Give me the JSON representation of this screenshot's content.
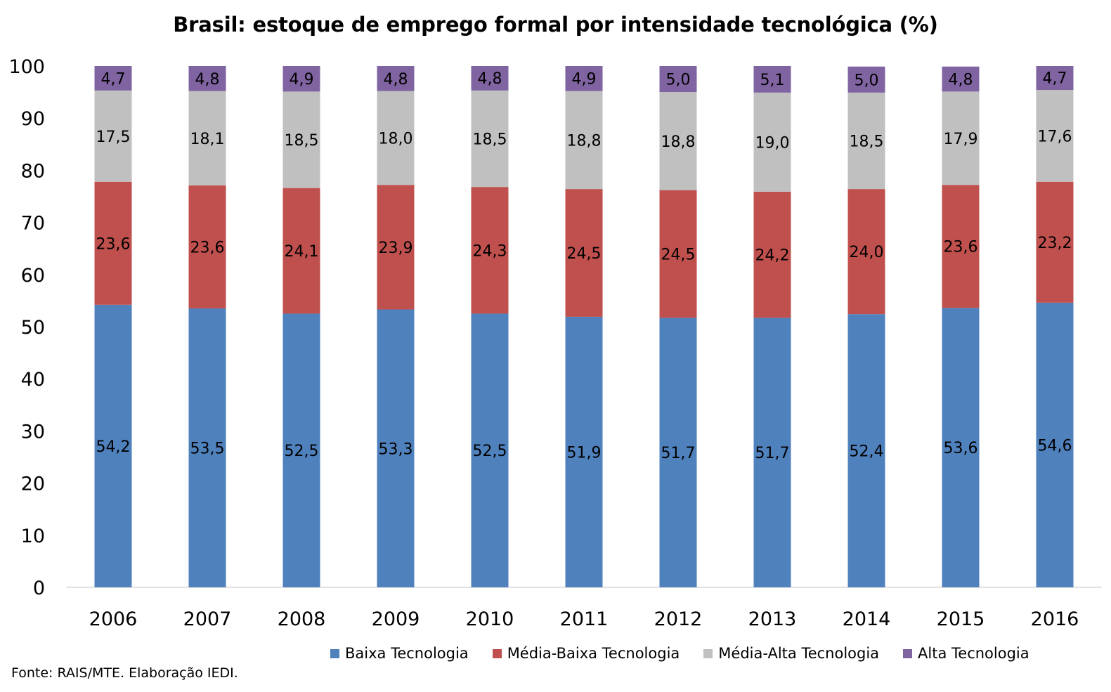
{
  "chart_data": {
    "type": "bar",
    "stacked": true,
    "title": "Brasil: estoque de emprego formal por intensidade tecnológica (%)",
    "categories": [
      "2006",
      "2007",
      "2008",
      "2009",
      "2010",
      "2011",
      "2012",
      "2013",
      "2014",
      "2015",
      "2016"
    ],
    "series": [
      {
        "name": "Baixa Tecnologia",
        "color": "#4F81BD",
        "values": [
          54.2,
          53.5,
          52.5,
          53.3,
          52.5,
          51.9,
          51.7,
          51.7,
          52.4,
          53.6,
          54.6
        ],
        "labels": [
          "54,2",
          "53,5",
          "52,5",
          "53,3",
          "52,5",
          "51,9",
          "51,7",
          "51,7",
          "52,4",
          "53,6",
          "54,6"
        ]
      },
      {
        "name": "Média-Baixa Tecnologia",
        "color": "#C0504D",
        "values": [
          23.6,
          23.6,
          24.1,
          23.9,
          24.3,
          24.5,
          24.5,
          24.2,
          24.0,
          23.6,
          23.2
        ],
        "labels": [
          "23,6",
          "23,6",
          "24,1",
          "23,9",
          "24,3",
          "24,5",
          "24,5",
          "24,2",
          "24,0",
          "23,6",
          "23,2"
        ]
      },
      {
        "name": "Média-Alta Tecnologia",
        "color": "#C0C0C0",
        "values": [
          17.5,
          18.1,
          18.5,
          18.0,
          18.5,
          18.8,
          18.8,
          19.0,
          18.5,
          17.9,
          17.6
        ],
        "labels": [
          "17,5",
          "18,1",
          "18,5",
          "18,0",
          "18,5",
          "18,8",
          "18,8",
          "19,0",
          "18,5",
          "17,9",
          "17,6"
        ]
      },
      {
        "name": "Alta Tecnologia",
        "color": "#8064A2",
        "values": [
          4.7,
          4.8,
          4.9,
          4.8,
          4.8,
          4.9,
          5.0,
          5.1,
          5.0,
          4.8,
          4.7
        ],
        "labels": [
          "4,7",
          "4,8",
          "4,9",
          "4,8",
          "4,8",
          "4,9",
          "5,0",
          "5,1",
          "5,0",
          "4,8",
          "4,7"
        ]
      }
    ],
    "ylim": [
      0,
      100
    ],
    "yticks": [
      0,
      10,
      20,
      30,
      40,
      50,
      60,
      70,
      80,
      90,
      100
    ],
    "xlabel": "",
    "ylabel": "",
    "grid": false,
    "legend_position": "bottom"
  },
  "source_note": "Fonte: RAIS/MTE. Elaboração IEDI."
}
